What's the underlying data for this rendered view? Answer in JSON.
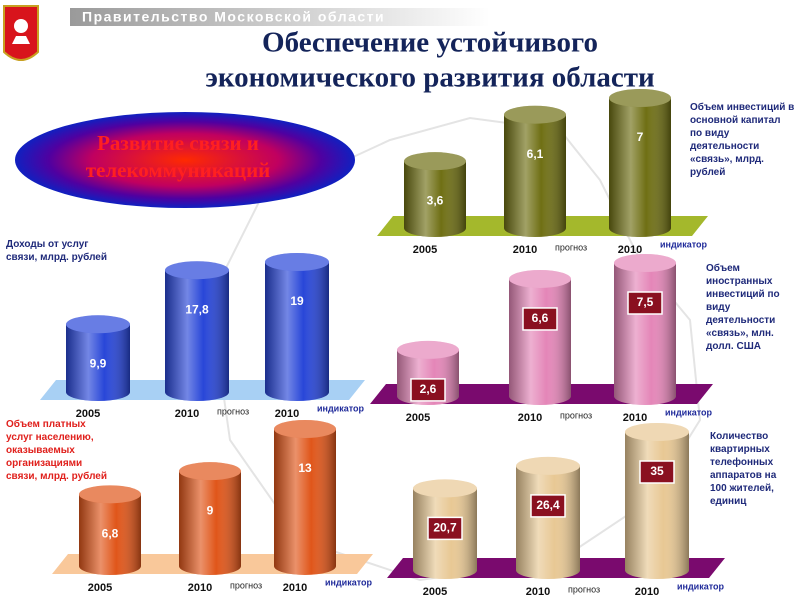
{
  "header": {
    "org": "Правительство Московской области",
    "title": [
      "Обеспечение устойчивого",
      "экономического развития области"
    ],
    "badge": [
      "Развитие связи и",
      "телекоммуникаций"
    ]
  },
  "chart_data": [
    {
      "type": "bar",
      "title": "Объем инвестиций в основной капитал по виду деятельности «связь», млрд. рублей",
      "title_color": "#1f2a7a",
      "categories": [
        "2005",
        "2010",
        "2010"
      ],
      "category_notes": [
        null,
        "прогноз",
        "индикатор"
      ],
      "values": [
        3.6,
        6.1,
        7
      ],
      "value_labels": [
        "3,6",
        "6,1",
        "7"
      ],
      "color": "#6f6f14",
      "base_color": "#a4b82c",
      "label_box": false
    },
    {
      "type": "bar",
      "title": "Доходы от услуг связи, млрд. рублей",
      "title_color": "#1f2a7a",
      "categories": [
        "2005",
        "2010",
        "2010"
      ],
      "category_notes": [
        null,
        "прогноз",
        "индикатор"
      ],
      "values": [
        9.9,
        17.8,
        19
      ],
      "value_labels": [
        "9,9",
        "17,8",
        "19"
      ],
      "color": "#2846d8",
      "base_color": "#a8d0f4",
      "label_box": false
    },
    {
      "type": "bar",
      "title": "Объем иностранных инвестиций по виду деятельности «связь», млн. долл. США",
      "title_color": "#1f2a7a",
      "categories": [
        "2005",
        "2010",
        "2010"
      ],
      "category_notes": [
        null,
        "прогноз",
        "индикатор"
      ],
      "values": [
        2.6,
        6.6,
        7.5
      ],
      "value_labels": [
        "2,6",
        "6,6",
        "7,5"
      ],
      "color": "#e486b8",
      "base_color": "#7a0a6e",
      "label_box": true
    },
    {
      "type": "bar",
      "title": "Объем платных услуг населению, оказываемых организациями связи, млрд. рублей",
      "title_color": "#e0201c",
      "categories": [
        "2005",
        "2010",
        "2010"
      ],
      "category_notes": [
        null,
        "прогноз",
        "индикатор"
      ],
      "values": [
        6.8,
        9,
        13
      ],
      "value_labels": [
        "6,8",
        "9",
        "13"
      ],
      "color": "#e0561a",
      "base_color": "#f9c89a",
      "label_box": false
    },
    {
      "type": "bar",
      "title": "Количество квартирных телефонных аппаратов на 100 жителей, единиц",
      "title_color": "#1f2a7a",
      "categories": [
        "2005",
        "2010",
        "2010"
      ],
      "category_notes": [
        null,
        "прогноз",
        "индикатор"
      ],
      "values": [
        20.7,
        26.4,
        35
      ],
      "value_labels": [
        "20,7",
        "26,4",
        "35"
      ],
      "color": "#e8c894",
      "base_color": "#7a0a6e",
      "label_box": true
    }
  ]
}
